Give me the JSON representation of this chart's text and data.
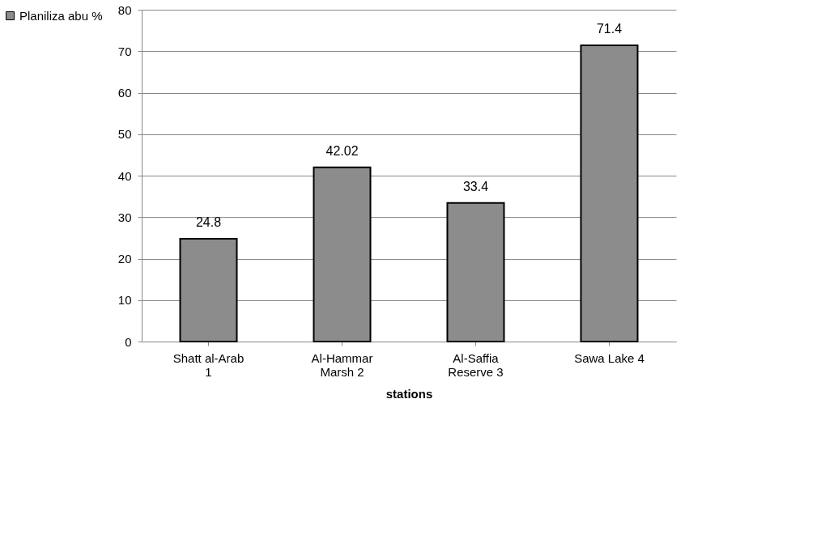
{
  "chart_data": {
    "type": "bar",
    "categories": [
      "Shatt al-Arab 1",
      "Al-Hammar Marsh 2",
      "Al-Saffia Reserve 3",
      "Sawa Lake 4"
    ],
    "series": [
      {
        "name": "Planiliza abu %",
        "color": "#8c8c8c",
        "values": [
          24.8,
          42.02,
          33.4,
          71.4
        ]
      }
    ],
    "xlabel": "stations",
    "ylim": [
      0,
      80
    ],
    "yticks": [
      0,
      10,
      20,
      30,
      40,
      50,
      60,
      70,
      80
    ],
    "grid": "y",
    "legend": "left",
    "data_labels": true
  }
}
